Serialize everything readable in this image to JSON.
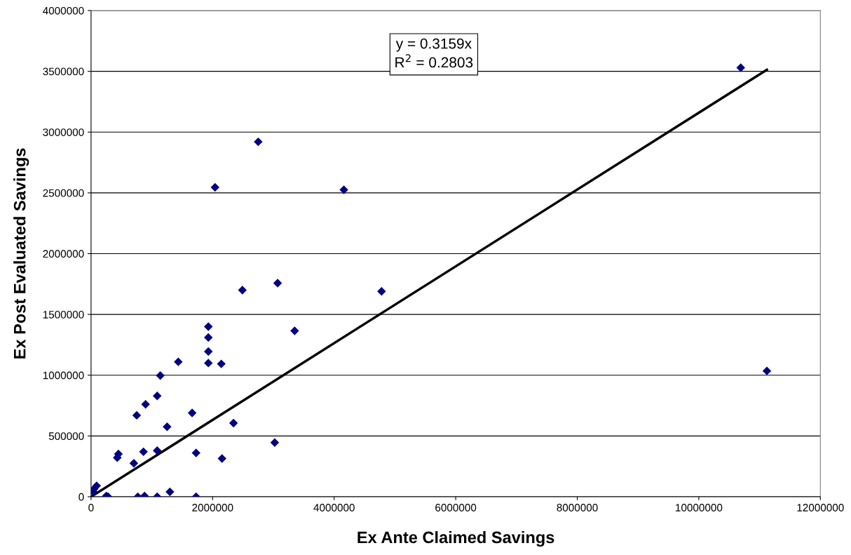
{
  "chart_data": {
    "type": "scatter",
    "xlabel": "Ex Ante Claimed Savings",
    "ylabel": "Ex Post Evaluated Savings",
    "annotations": [
      "y = 0.3159x\nR$^{2}$ = 0.2803"
    ],
    "series": [
      {
        "color": "#000080",
        "marker": "diamond",
        "x": [
          10690000,
          11120000,
          2750000,
          2040000,
          4160000,
          2490000,
          3070000,
          4780000,
          1930000,
          3350000,
          1930000,
          1930000,
          1435000,
          1930000,
          2143000,
          1139000,
          1088000,
          897000,
          751000,
          1663000,
          1251000,
          2344000,
          3022000,
          450000,
          431000,
          862000,
          1088000,
          1728000,
          704000,
          2155000,
          92000,
          38000,
          50000,
          1297000,
          250000,
          280000,
          770000,
          880000,
          1088000,
          1728000
        ],
        "values": [
          3530000,
          1035000,
          2920000,
          2545000,
          2525000,
          1700000,
          1757000,
          1690000,
          1400000,
          1365000,
          1310000,
          1195000,
          1110000,
          1100000,
          1093000,
          997000,
          830000,
          760000,
          670000,
          690000,
          576000,
          606000,
          446000,
          352000,
          322000,
          370000,
          379000,
          360000,
          275000,
          314000,
          90000,
          40000,
          65000,
          40000,
          5000,
          0,
          0,
          5000,
          0,
          0
        ]
      },
      {
        "type": "line",
        "color": "#000000",
        "marker": "none",
        "line_style": "solid",
        "x": [
          0,
          11120000
        ],
        "values": [
          0,
          3513000
        ]
      }
    ],
    "xlim": [
      0,
      12000000
    ],
    "xticks": [
      0,
      2000000,
      4000000,
      6000000,
      8000000,
      10000000,
      12000000
    ],
    "ylim": [
      0,
      4000000
    ],
    "yticks": [
      0,
      500000,
      1000000,
      1500000,
      2000000,
      2500000,
      3000000,
      3500000,
      4000000
    ],
    "grid": "y",
    "legend": false
  }
}
